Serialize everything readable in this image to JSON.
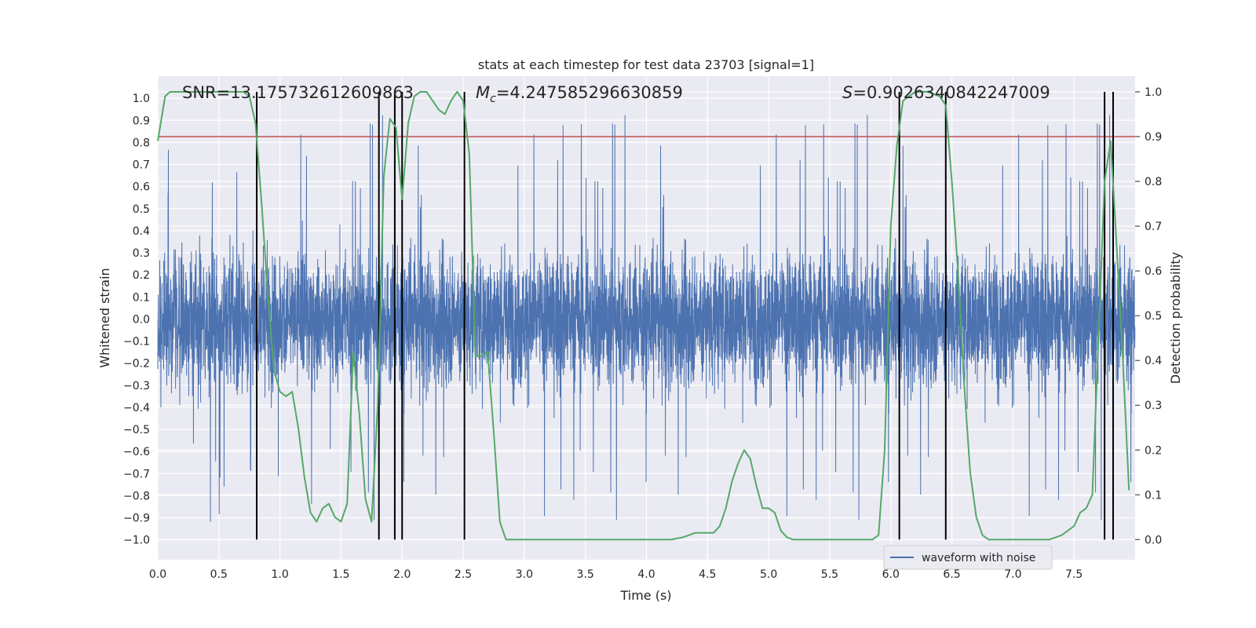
{
  "chart_data": {
    "type": "line",
    "title": "stats at each timestep for test data 23703 [signal=1]",
    "xlabel": "Time (s)",
    "ylabel": "Whitened strain",
    "y2label": "Detection probability",
    "xlim": [
      0.0,
      8.0
    ],
    "ylim": [
      -1.09,
      1.1
    ],
    "y2lim": [
      -0.045,
      1.035
    ],
    "xticks": [
      "0.0",
      "0.5",
      "1.0",
      "1.5",
      "2.0",
      "2.5",
      "3.0",
      "3.5",
      "4.0",
      "4.5",
      "5.0",
      "5.5",
      "6.0",
      "6.5",
      "7.0",
      "7.5"
    ],
    "yticks": [
      "1.0",
      "0.9",
      "0.8",
      "0.7",
      "0.6",
      "0.5",
      "0.4",
      "0.3",
      "0.2",
      "0.1",
      "0.0",
      "-0.1",
      "-0.2",
      "-0.3",
      "-0.4",
      "-0.5",
      "-0.6",
      "-0.7",
      "-0.8",
      "-0.9",
      "-1.0"
    ],
    "y2ticks": [
      "1.0",
      "0.9",
      "0.8",
      "0.7",
      "0.6",
      "0.5",
      "0.4",
      "0.3",
      "0.2",
      "0.1",
      "0.0"
    ],
    "grid": true,
    "annotations": {
      "snr": "SNR=13.175732612609863",
      "mc_prefix": "M",
      "mc_sub": "c",
      "mc_value": "=4.247585296630859",
      "s_prefix": "S",
      "s_value": "=0.9026340842247009"
    },
    "legend": {
      "position": "lower-right",
      "entries": [
        "waveform with noise"
      ]
    },
    "threshold": {
      "value": 0.9,
      "axis": "right",
      "color": "#c44e52"
    },
    "vlines": [
      0.81,
      1.81,
      1.94,
      2.0,
      2.51,
      6.07,
      6.45,
      7.75,
      7.82
    ],
    "series": [
      {
        "name": "waveform with noise",
        "axis": "left",
        "color": "#4c72b0",
        "kind": "noise",
        "duration": 8.0,
        "envelope_typical": 0.4,
        "envelope_peak": 1.0
      },
      {
        "axis": "right",
        "color": "#55a868",
        "x": [
          0.0,
          0.06,
          0.1,
          0.2,
          0.3,
          0.4,
          0.5,
          0.6,
          0.7,
          0.75,
          0.8,
          0.85,
          0.9,
          0.95,
          1.0,
          1.05,
          1.1,
          1.15,
          1.2,
          1.25,
          1.3,
          1.35,
          1.4,
          1.45,
          1.5,
          1.55,
          1.6,
          1.65,
          1.7,
          1.75,
          1.8,
          1.85,
          1.88,
          1.9,
          1.95,
          2.0,
          2.05,
          2.1,
          2.15,
          2.2,
          2.25,
          2.3,
          2.35,
          2.4,
          2.45,
          2.5,
          2.55,
          2.6,
          2.65,
          2.7,
          2.75,
          2.8,
          2.85,
          2.9,
          3.0,
          3.2,
          3.4,
          3.6,
          3.8,
          4.0,
          4.2,
          4.3,
          4.4,
          4.5,
          4.55,
          4.6,
          4.65,
          4.7,
          4.75,
          4.8,
          4.85,
          4.9,
          4.95,
          5.0,
          5.05,
          5.1,
          5.15,
          5.2,
          5.3,
          5.5,
          5.7,
          5.8,
          5.85,
          5.9,
          5.95,
          6.0,
          6.05,
          6.1,
          6.15,
          6.2,
          6.3,
          6.4,
          6.45,
          6.5,
          6.55,
          6.6,
          6.65,
          6.7,
          6.75,
          6.8,
          6.9,
          7.0,
          7.2,
          7.3,
          7.4,
          7.5,
          7.55,
          7.6,
          7.65,
          7.7,
          7.75,
          7.8,
          7.85,
          7.9,
          7.95
        ],
        "y": [
          0.89,
          0.99,
          1.0,
          1.0,
          1.0,
          1.0,
          1.0,
          1.0,
          1.0,
          0.99,
          0.93,
          0.75,
          0.55,
          0.38,
          0.33,
          0.32,
          0.33,
          0.25,
          0.14,
          0.06,
          0.04,
          0.07,
          0.08,
          0.05,
          0.04,
          0.08,
          0.42,
          0.28,
          0.09,
          0.04,
          0.3,
          0.81,
          0.89,
          0.94,
          0.92,
          0.76,
          0.93,
          0.99,
          1.0,
          1.0,
          0.98,
          0.96,
          0.95,
          0.98,
          1.0,
          0.98,
          0.86,
          0.41,
          0.41,
          0.42,
          0.24,
          0.04,
          0.0,
          0.0,
          0.0,
          0.0,
          0.0,
          0.0,
          0.0,
          0.0,
          0.0,
          0.005,
          0.015,
          0.015,
          0.015,
          0.03,
          0.07,
          0.13,
          0.17,
          0.2,
          0.18,
          0.12,
          0.07,
          0.07,
          0.06,
          0.02,
          0.005,
          0.0,
          0.0,
          0.0,
          0.0,
          0.0,
          0.0,
          0.01,
          0.2,
          0.7,
          0.88,
          0.98,
          0.99,
          1.0,
          1.0,
          0.99,
          0.97,
          0.8,
          0.6,
          0.35,
          0.15,
          0.05,
          0.01,
          0.0,
          0.0,
          0.0,
          0.0,
          0.0,
          0.01,
          0.03,
          0.06,
          0.07,
          0.1,
          0.45,
          0.8,
          0.89,
          0.65,
          0.4,
          0.11
        ]
      }
    ]
  }
}
